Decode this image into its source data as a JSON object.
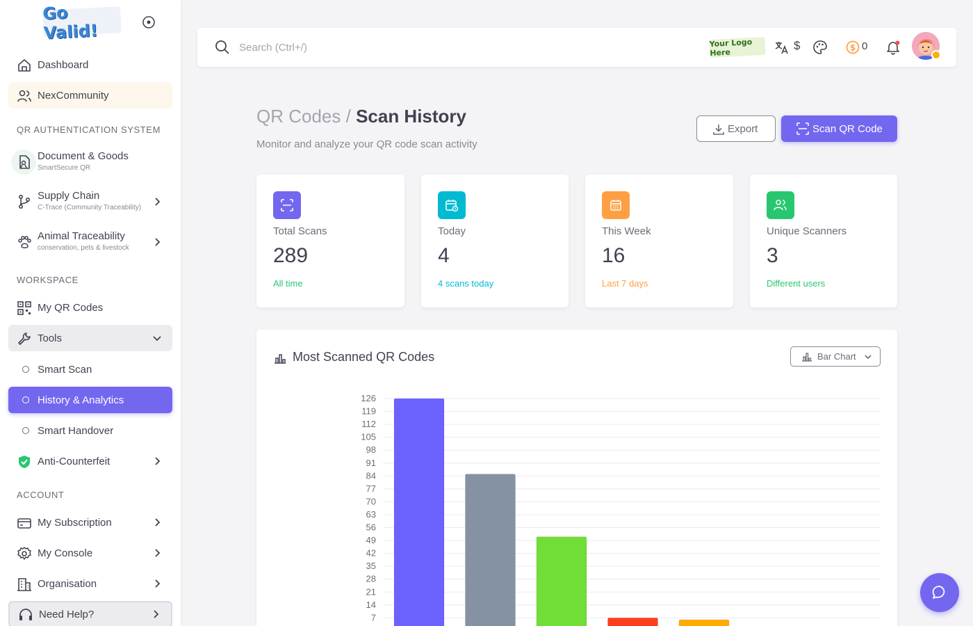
{
  "brand": {
    "logo_text": "Go Valid!"
  },
  "sidebar": {
    "items": {
      "dashboard": "Dashboard",
      "community": "NexCommunity",
      "document_goods": {
        "label": "Document & Goods",
        "sub": "SmartSecure QR"
      },
      "supply_chain": {
        "label": "Supply Chain",
        "sub": "C-Trace (Community Traceability)"
      },
      "animal": {
        "label": "Animal Traceability",
        "sub": "conservation, pets & livestock"
      },
      "my_qr": "My QR Codes",
      "tools": "Tools",
      "smart_scan": "Smart Scan",
      "history": "History & Analytics",
      "handover": "Smart Handover",
      "anti_counterfeit": "Anti-Counterfeit",
      "subscription": "My Subscription",
      "console": "My Console",
      "organisation": "Organisation",
      "help": "Need Help?"
    },
    "sections": {
      "qr_auth": "QR AUTHENTICATION SYSTEM",
      "workspace": "WORKSPACE",
      "account": "ACCOUNT"
    }
  },
  "topbar": {
    "search_placeholder": "Search (Ctrl+/)",
    "logo_placeholder": "Your Logo Here",
    "currency": "$",
    "coins": "0"
  },
  "page": {
    "breadcrumb_parent": "QR Codes /",
    "breadcrumb_current": "Scan History",
    "subtitle": "Monitor and analyze your QR code scan activity",
    "export_label": "Export",
    "scan_label": "Scan QR Code"
  },
  "stats": [
    {
      "label": "Total Scans",
      "value": "289",
      "note": "All time",
      "color": "#7367f0",
      "note_color": "#28c76f"
    },
    {
      "label": "Today",
      "value": "4",
      "note": "4 scans today",
      "color": "#00bad1",
      "note_color": "#00bad1"
    },
    {
      "label": "This Week",
      "value": "16",
      "note": "Last 7 days",
      "color": "#ff9f43",
      "note_color": "#ff9f43"
    },
    {
      "label": "Unique Scanners",
      "value": "3",
      "note": "Different users",
      "color": "#28c76f",
      "note_color": "#28c76f"
    }
  ],
  "chart_card": {
    "title": "Most Scanned QR Codes",
    "selector_label": "Bar Chart"
  },
  "chart_data": {
    "type": "bar",
    "categories": [
      "",
      "",
      "",
      "",
      ""
    ],
    "values": [
      126,
      85,
      51,
      7,
      6
    ],
    "colors": [
      "#6c63ff",
      "#8592a3",
      "#71dd37",
      "#ff3e1d",
      "#ffab00"
    ],
    "title": "Most Scanned QR Codes",
    "xlabel": "",
    "ylabel": "",
    "ylim": [
      0,
      126
    ],
    "yticks": [
      126,
      119,
      112,
      105,
      98,
      91,
      84,
      77,
      70,
      63,
      56,
      49,
      42,
      35,
      28,
      21,
      14,
      7
    ],
    "grid": true,
    "legend": "none"
  }
}
